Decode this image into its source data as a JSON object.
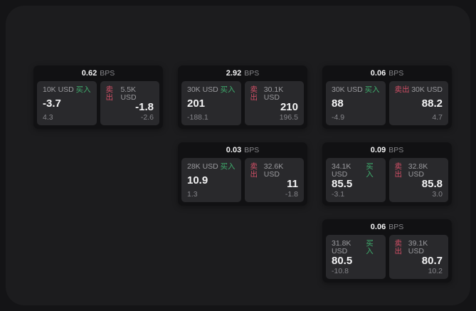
{
  "labels": {
    "buy": "买入",
    "sell": "卖出",
    "bps": "BPS"
  },
  "colors": {
    "buy_green": "#3FAE6E",
    "sell_red": "#D14F66",
    "outer_bg": "#141416",
    "panel_bg": "#1C1C1E",
    "card_bg": "#111113",
    "pane_bg": "#29292C"
  },
  "cards": [
    {
      "bps_value": "0.62",
      "buy": {
        "amount": "10K USD",
        "price": "-3.7",
        "delta": "4.3"
      },
      "sell": {
        "amount": "5.5K USD",
        "price": "-1.8",
        "delta": "-2.6"
      }
    },
    {
      "bps_value": "2.92",
      "buy": {
        "amount": "30K USD",
        "price": "201",
        "delta": "-188.1"
      },
      "sell": {
        "amount": "30.1K USD",
        "price": "210",
        "delta": "196.5"
      }
    },
    {
      "bps_value": "0.06",
      "buy": {
        "amount": "30K USD",
        "price": "88",
        "delta": "-4.9"
      },
      "sell": {
        "amount": "30K USD",
        "price": "88.2",
        "delta": "4.7"
      }
    },
    {
      "bps_value": "0.03",
      "buy": {
        "amount": "28K USD",
        "price": "10.9",
        "delta": "1.3"
      },
      "sell": {
        "amount": "32.6K USD",
        "price": "11",
        "delta": "-1.8"
      }
    },
    {
      "bps_value": "0.09",
      "buy": {
        "amount": "34.1K USD",
        "price": "85.5",
        "delta": "-3.1"
      },
      "sell": {
        "amount": "32.8K USD",
        "price": "85.8",
        "delta": "3.0"
      }
    },
    {
      "bps_value": "0.06",
      "buy": {
        "amount": "31.8K USD",
        "price": "80.5",
        "delta": "-10.8"
      },
      "sell": {
        "amount": "39.1K USD",
        "price": "80.7",
        "delta": "10.2"
      }
    }
  ]
}
